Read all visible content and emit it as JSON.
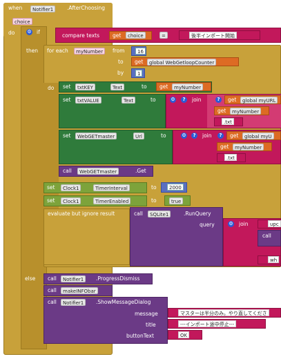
{
  "event": {
    "when": "when",
    "component": "Notifier1",
    "event_name": ".AfterChoosing",
    "param": "choice",
    "do": "do"
  },
  "if_block": {
    "if": "if",
    "then": "then",
    "else": "else",
    "compare": "compare texts",
    "get": "get",
    "choice": "choice",
    "op": "=",
    "text": "後半インポート開始"
  },
  "foreach": {
    "label": "for each",
    "var": "myNumber",
    "from": "from",
    "from_val": "16",
    "to": "to",
    "to_get": "global WebGetloopCounter",
    "by": "by",
    "by_val": "1",
    "do": "do"
  },
  "set1": {
    "set": "set",
    "comp": "txtKEY",
    "prop": "Text",
    "to": "to",
    "get": "get",
    "var": "myNumber"
  },
  "set2": {
    "set": "set",
    "comp": "txtVALUE",
    "prop": "Text",
    "to": "to",
    "join": "join",
    "get1": "global myURL",
    "get2": "myNumber",
    "str": ".txt"
  },
  "set3": {
    "set": "set",
    "comp": "WebGETmaster",
    "prop": "Url",
    "to": "to",
    "join": "join",
    "get1": "global myU",
    "get2": "myNumber",
    "str": ".txt"
  },
  "call_get": {
    "call": "call",
    "comp": "WebGETmaster",
    "method": ".Get"
  },
  "clock1": {
    "set": "set",
    "comp": "Clock1",
    "prop": "TimerInterval",
    "to": "to",
    "val": "2000"
  },
  "clock2": {
    "set": "set",
    "comp": "Clock1",
    "prop": "TimerEnabled",
    "to": "to",
    "val": "true"
  },
  "evaluate": {
    "label": "evaluate but ignore result",
    "call": "call",
    "comp": "SQLite1",
    "method": ".RunQuery",
    "query": "query",
    "join": "join",
    "str1": "upc",
    "call2": "call",
    "str2": "wh"
  },
  "else_calls": {
    "call1": {
      "call": "call",
      "comp": "Notifier1",
      "method": ".ProgressDismiss"
    },
    "call2": {
      "call": "call",
      "proc": "makeINFObar"
    },
    "call3": {
      "call": "call",
      "comp": "Notifier1",
      "method": ".ShowMessageDialog",
      "message": "message",
      "title": "title",
      "buttonText": "buttonText",
      "message_val": "マスターは半分のみ。やり直してくださ",
      "title_val": "---インポート途中停止---",
      "button_val": "OK"
    }
  },
  "icons": {
    "gear": "gear-icon",
    "help": "question-icon"
  },
  "colors": {
    "event": "#c8a13a",
    "component": "#2f7b3b",
    "text": "#c2185b",
    "variable": "#dd6b24",
    "procedure": "#6b3a86",
    "control": "#c8a13a"
  }
}
